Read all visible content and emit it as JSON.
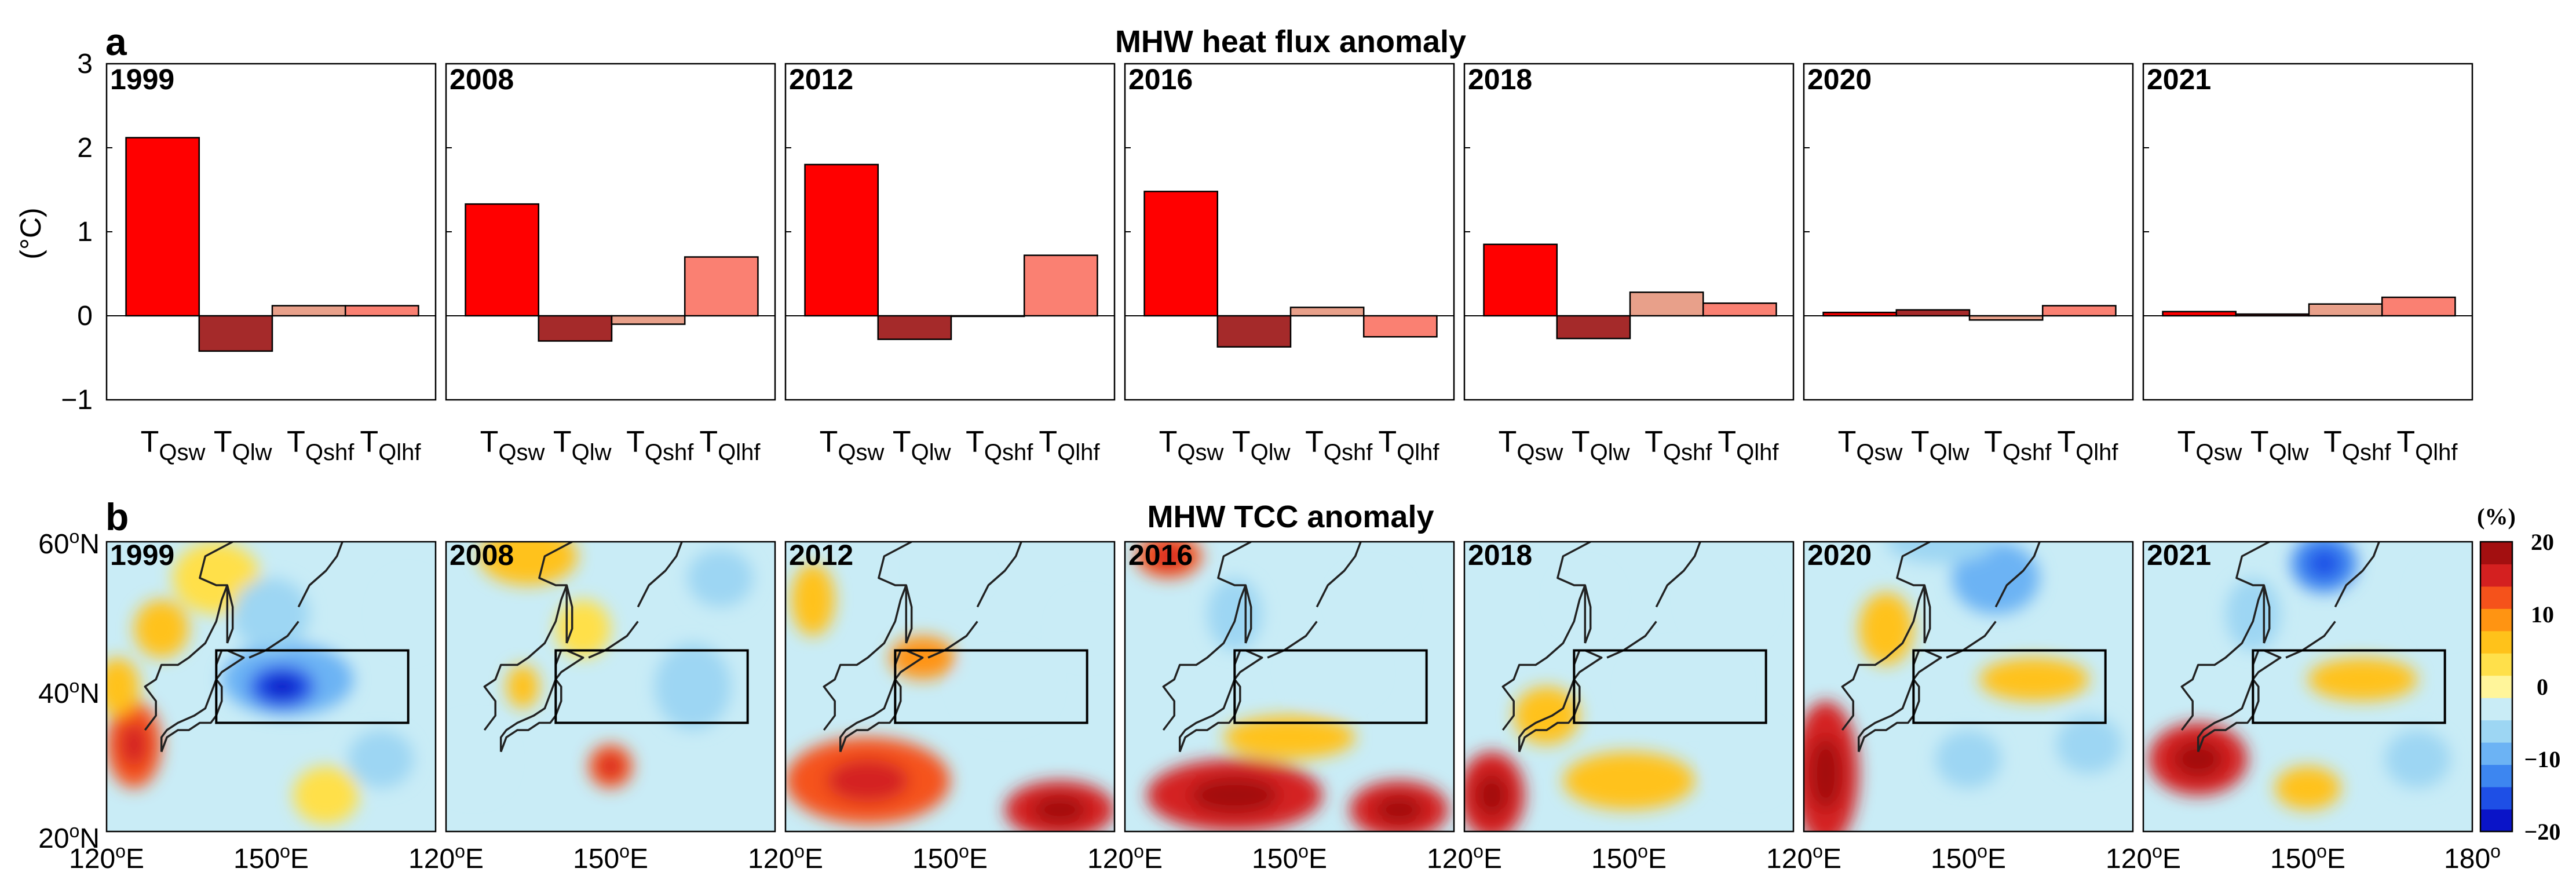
{
  "chart_data": [
    {
      "panel": "a",
      "type": "bar",
      "title": "MHW heat flux anomaly",
      "ylabel": "(°C)",
      "ylim": [
        -1,
        3
      ],
      "yticks": [
        "−1",
        "0",
        "1",
        "2",
        "3"
      ],
      "categories": [
        "T_Qsw",
        "T_Qlw",
        "T_Qshf",
        "T_Qlhf"
      ],
      "category_parts": [
        [
          "T",
          "Qsw"
        ],
        [
          "T",
          "Qlw"
        ],
        [
          "T",
          "Qshf"
        ],
        [
          "T",
          "Qlhf"
        ]
      ],
      "bar_colors": [
        "#ff0000",
        "#a52a2a",
        "#e8a08a",
        "#fa8072"
      ],
      "subplots": [
        {
          "year": "1999",
          "values": [
            2.12,
            -0.42,
            0.12,
            0.12
          ]
        },
        {
          "year": "2008",
          "values": [
            1.33,
            -0.3,
            -0.1,
            0.7
          ]
        },
        {
          "year": "2012",
          "values": [
            1.8,
            -0.28,
            0.0,
            0.72
          ]
        },
        {
          "year": "2016",
          "values": [
            1.48,
            -0.37,
            0.1,
            -0.25
          ]
        },
        {
          "year": "2018",
          "values": [
            0.85,
            -0.27,
            0.28,
            0.15
          ]
        },
        {
          "year": "2020",
          "values": [
            0.04,
            0.07,
            -0.05,
            0.12
          ]
        },
        {
          "year": "2021",
          "values": [
            0.05,
            0.02,
            0.14,
            0.22
          ]
        }
      ]
    },
    {
      "panel": "b",
      "type": "heatmap",
      "title": "MHW TCC anomaly",
      "years": [
        "1999",
        "2008",
        "2012",
        "2016",
        "2018",
        "2020",
        "2021"
      ],
      "lon_range": [
        120,
        180
      ],
      "lat_range": [
        20,
        60
      ],
      "xtick_labels": [
        [
          "120",
          "E"
        ],
        [
          "150",
          "E"
        ],
        [
          "120",
          "E"
        ],
        [
          "150",
          "E"
        ],
        [
          "120",
          "E"
        ],
        [
          "150",
          "E"
        ],
        [
          "120",
          "E"
        ],
        [
          "150",
          "E"
        ],
        [
          "120",
          "E"
        ],
        [
          "150",
          "E"
        ],
        [
          "120",
          "E"
        ],
        [
          "150",
          "E"
        ],
        [
          "120",
          "E"
        ],
        [
          "150",
          "E"
        ],
        [
          "180",
          ""
        ]
      ],
      "ytick_labels": [
        [
          "60",
          "N"
        ],
        [
          "40",
          "N"
        ],
        [
          "20",
          "N"
        ]
      ],
      "box_lon": [
        140,
        175
      ],
      "box_lat": [
        35,
        45
      ],
      "colorbar": {
        "unit": "(%)",
        "range": [
          -20,
          20
        ],
        "ticks": [
          "20",
          "10",
          "0",
          "−10",
          "−20"
        ],
        "colors": [
          "#0a14c8",
          "#1e4fe6",
          "#3d86f0",
          "#6cb3f4",
          "#9dd6f3",
          "#c9ecf6",
          "#fff59a",
          "#ffe04a",
          "#ffc21a",
          "#ff9412",
          "#f5521b",
          "#d42020",
          "#a30f10"
        ]
      }
    }
  ]
}
